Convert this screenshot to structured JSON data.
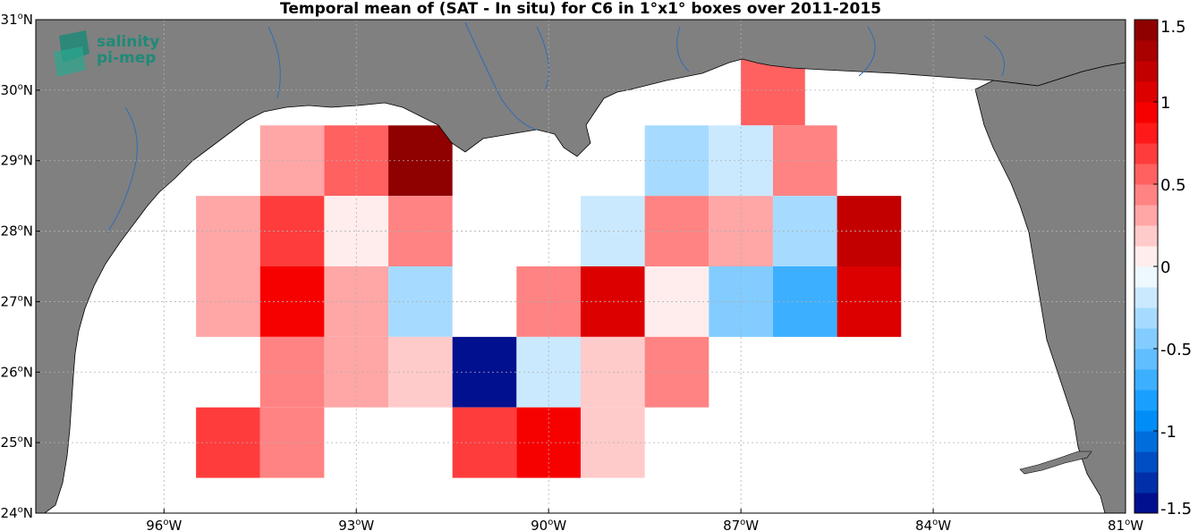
{
  "title": "Temporal mean of (SAT - In situ) for C6 in 1°x1° boxes over 2011-2015",
  "logo": {
    "line1": "salinity",
    "line2": "pi-mep",
    "color": "#1f8a78"
  },
  "axes": {
    "lon_range": [
      -98,
      -81
    ],
    "lat_range": [
      24,
      31
    ],
    "x_ticks": [
      {
        "value": -96,
        "deg": "96",
        "hemi": "W"
      },
      {
        "value": -93,
        "deg": "93",
        "hemi": "W"
      },
      {
        "value": -90,
        "deg": "90",
        "hemi": "W"
      },
      {
        "value": -87,
        "deg": "87",
        "hemi": "W"
      },
      {
        "value": -84,
        "deg": "84",
        "hemi": "W"
      },
      {
        "value": -81,
        "deg": "81",
        "hemi": "W"
      }
    ],
    "y_ticks": [
      {
        "value": 24,
        "deg": "24",
        "hemi": "N"
      },
      {
        "value": 25,
        "deg": "25",
        "hemi": "N"
      },
      {
        "value": 26,
        "deg": "26",
        "hemi": "N"
      },
      {
        "value": 27,
        "deg": "27",
        "hemi": "N"
      },
      {
        "value": 28,
        "deg": "28",
        "hemi": "N"
      },
      {
        "value": 29,
        "deg": "29",
        "hemi": "N"
      },
      {
        "value": 30,
        "deg": "30",
        "hemi": "N"
      },
      {
        "value": 31,
        "deg": "31",
        "hemi": "N"
      }
    ],
    "grid": true
  },
  "colorbar": {
    "range": [
      -1.5,
      1.5
    ],
    "tick_labels": [
      "1.5",
      "1",
      "0.5",
      "0",
      "-0.5",
      "-1",
      "-1.5"
    ],
    "tick_values": [
      1.5,
      1,
      0.5,
      0,
      -0.5,
      -1,
      -1.5
    ],
    "levels": 24
  },
  "colors": {
    "land": "#808080",
    "ocean": "#ffffff",
    "rivers": "#2f6db5",
    "grid": "#b0b0b0"
  },
  "chart_data": {
    "type": "heatmap",
    "title": "Temporal mean of (SAT - In situ) for C6 in 1°x1° boxes over 2011-2015",
    "cell_size_deg": 1,
    "note_units": "lon/lat of box center",
    "cells": [
      {
        "lon": -94,
        "lat": 29,
        "value": 0.3
      },
      {
        "lon": -93,
        "lat": 29,
        "value": 0.6
      },
      {
        "lon": -92,
        "lat": 29,
        "value": 1.4
      },
      {
        "lon": -86.5,
        "lat": 30,
        "value": 0.55
      },
      {
        "lon": -88,
        "lat": 29,
        "value": -0.3
      },
      {
        "lon": -87,
        "lat": 29,
        "value": -0.15
      },
      {
        "lon": -86,
        "lat": 29,
        "value": 0.4
      },
      {
        "lon": -95,
        "lat": 28,
        "value": 0.3
      },
      {
        "lon": -94,
        "lat": 28,
        "value": 0.7
      },
      {
        "lon": -93,
        "lat": 28,
        "value": 0.0
      },
      {
        "lon": -92,
        "lat": 28,
        "value": 0.4
      },
      {
        "lon": -89,
        "lat": 28,
        "value": -0.15
      },
      {
        "lon": -88,
        "lat": 28,
        "value": 0.4
      },
      {
        "lon": -87,
        "lat": 28,
        "value": 0.3
      },
      {
        "lon": -86,
        "lat": 28,
        "value": -0.3
      },
      {
        "lon": -85,
        "lat": 28,
        "value": 1.2
      },
      {
        "lon": -95,
        "lat": 27,
        "value": 0.3
      },
      {
        "lon": -94,
        "lat": 27,
        "value": 0.9
      },
      {
        "lon": -93,
        "lat": 27,
        "value": 0.3
      },
      {
        "lon": -92,
        "lat": 27,
        "value": -0.3
      },
      {
        "lon": -90,
        "lat": 27,
        "value": 0.45
      },
      {
        "lon": -89,
        "lat": 27,
        "value": 1.1
      },
      {
        "lon": -88,
        "lat": 27,
        "value": 0.0
      },
      {
        "lon": -87,
        "lat": 27,
        "value": -0.45
      },
      {
        "lon": -86,
        "lat": 27,
        "value": -0.75
      },
      {
        "lon": -85,
        "lat": 27,
        "value": 1.1
      },
      {
        "lon": -94,
        "lat": 26,
        "value": 0.4
      },
      {
        "lon": -93,
        "lat": 26,
        "value": 0.3
      },
      {
        "lon": -92,
        "lat": 26,
        "value": 0.15
      },
      {
        "lon": -91,
        "lat": 26,
        "value": -1.5
      },
      {
        "lon": -90,
        "lat": 26,
        "value": -0.15
      },
      {
        "lon": -89,
        "lat": 26,
        "value": 0.15
      },
      {
        "lon": -88,
        "lat": 26,
        "value": 0.4
      },
      {
        "lon": -95,
        "lat": 25,
        "value": 0.7
      },
      {
        "lon": -94,
        "lat": 25,
        "value": 0.4
      },
      {
        "lon": -91,
        "lat": 25,
        "value": 0.7
      },
      {
        "lon": -90,
        "lat": 25,
        "value": 0.9
      },
      {
        "lon": -89,
        "lat": 25,
        "value": 0.15
      }
    ]
  }
}
